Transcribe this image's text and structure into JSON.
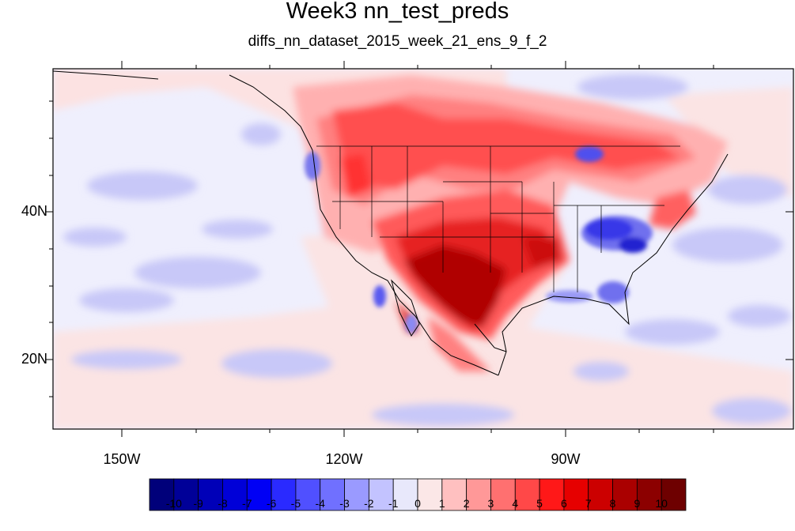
{
  "title": "Week3 nn_test_preds",
  "subtitle": "diffs_nn_dataset_2015_week_21_ens_9_f_2",
  "axes": {
    "lat_labels": [
      "40N",
      "20N"
    ],
    "lon_labels": [
      "150W",
      "120W",
      "90W"
    ]
  },
  "colorbar": {
    "labels": [
      "-10",
      "-9",
      "-8",
      "-7",
      "-6",
      "-5",
      "-4",
      "-3",
      "-2",
      "-1",
      "0",
      "1",
      "2",
      "3",
      "4",
      "5",
      "6",
      "7",
      "8",
      "9",
      "10"
    ],
    "colors": [
      "#00007a",
      "#000098",
      "#0000b8",
      "#0000d8",
      "#0000f5",
      "#2a2aff",
      "#5050ff",
      "#7070ff",
      "#9a9aff",
      "#c3c3ff",
      "#e8e8fb",
      "#fbe7e7",
      "#ffc0c0",
      "#ff9898",
      "#ff7070",
      "#ff4848",
      "#ff1818",
      "#e60000",
      "#cc0000",
      "#aa0000",
      "#8c0000",
      "#6e0000"
    ]
  }
}
